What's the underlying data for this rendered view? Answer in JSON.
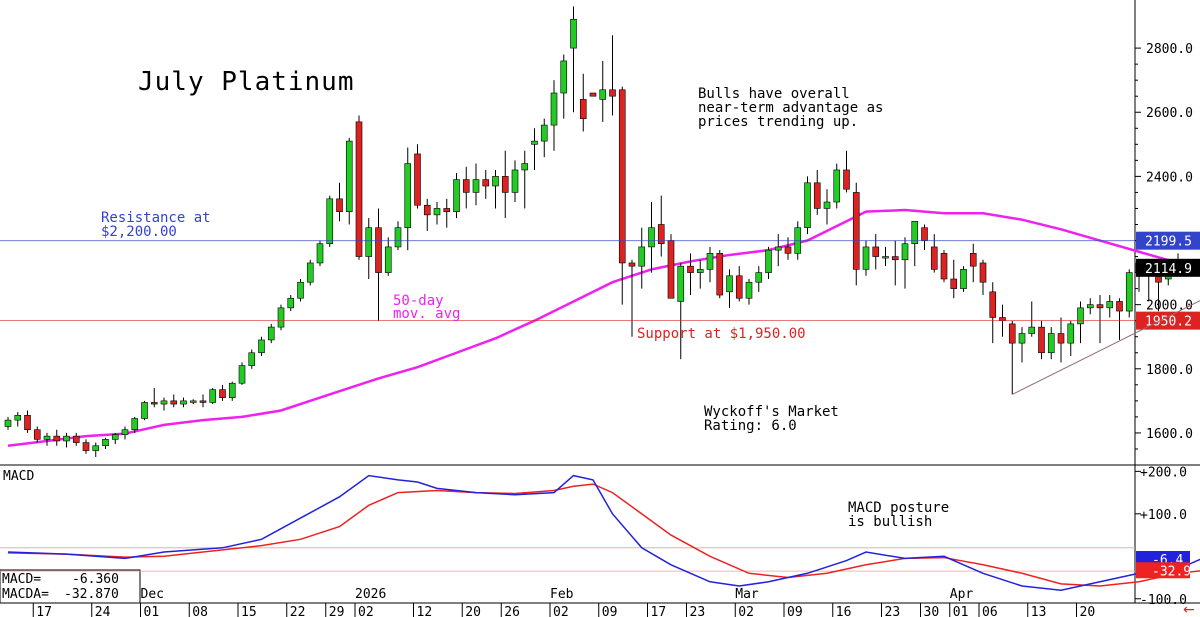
{
  "chart_data": {
    "type": "candlestick",
    "title": "July Platinum",
    "price_panel": {
      "ylim": [
        1500,
        2950
      ],
      "y_ticks": [
        1600,
        1800,
        2000,
        2200,
        2400,
        2600,
        2800
      ],
      "y_tick_labels": [
        "1600.0",
        "1800.0",
        "2000.0",
        "2200.0",
        "2400.0",
        "2600.0",
        "2800.0"
      ],
      "ohlc": [
        [
          1620,
          1650,
          1610,
          1640
        ],
        [
          1640,
          1665,
          1620,
          1655
        ],
        [
          1655,
          1670,
          1600,
          1610
        ],
        [
          1610,
          1620,
          1570,
          1580
        ],
        [
          1580,
          1600,
          1560,
          1590
        ],
        [
          1590,
          1610,
          1560,
          1575
        ],
        [
          1575,
          1600,
          1555,
          1590
        ],
        [
          1590,
          1600,
          1560,
          1570
        ],
        [
          1570,
          1580,
          1535,
          1545
        ],
        [
          1545,
          1570,
          1525,
          1560
        ],
        [
          1560,
          1585,
          1550,
          1580
        ],
        [
          1580,
          1600,
          1565,
          1595
        ],
        [
          1595,
          1620,
          1580,
          1610
        ],
        [
          1610,
          1650,
          1600,
          1645
        ],
        [
          1645,
          1700,
          1640,
          1695
        ],
        [
          1695,
          1740,
          1680,
          1690
        ],
        [
          1690,
          1710,
          1670,
          1700
        ],
        [
          1700,
          1720,
          1680,
          1690
        ],
        [
          1690,
          1710,
          1680,
          1700
        ],
        [
          1700,
          1705,
          1690,
          1700
        ],
        [
          1700,
          1720,
          1680,
          1695
        ],
        [
          1695,
          1740,
          1690,
          1735
        ],
        [
          1735,
          1750,
          1700,
          1710
        ],
        [
          1710,
          1760,
          1700,
          1755
        ],
        [
          1755,
          1820,
          1750,
          1810
        ],
        [
          1810,
          1860,
          1800,
          1850
        ],
        [
          1850,
          1900,
          1840,
          1890
        ],
        [
          1890,
          1940,
          1880,
          1930
        ],
        [
          1930,
          2000,
          1920,
          1990
        ],
        [
          1990,
          2030,
          1980,
          2020
        ],
        [
          2020,
          2080,
          2010,
          2070
        ],
        [
          2070,
          2140,
          2060,
          2130
        ],
        [
          2130,
          2200,
          2120,
          2190
        ],
        [
          2190,
          2340,
          2180,
          2330
        ],
        [
          2330,
          2380,
          2260,
          2290
        ],
        [
          2290,
          2520,
          2250,
          2510
        ],
        [
          2570,
          2590,
          2140,
          2150
        ],
        [
          2150,
          2270,
          2080,
          2240
        ],
        [
          2240,
          2300,
          1950,
          2100
        ],
        [
          2100,
          2210,
          2090,
          2180
        ],
        [
          2180,
          2260,
          2170,
          2240
        ],
        [
          2240,
          2490,
          2170,
          2440
        ],
        [
          2470,
          2500,
          2300,
          2310
        ],
        [
          2310,
          2330,
          2230,
          2280
        ],
        [
          2280,
          2320,
          2250,
          2300
        ],
        [
          2300,
          2330,
          2240,
          2290
        ],
        [
          2290,
          2410,
          2270,
          2390
        ],
        [
          2390,
          2430,
          2300,
          2350
        ],
        [
          2350,
          2440,
          2310,
          2390
        ],
        [
          2390,
          2420,
          2330,
          2370
        ],
        [
          2370,
          2420,
          2300,
          2400
        ],
        [
          2400,
          2480,
          2270,
          2350
        ],
        [
          2350,
          2450,
          2320,
          2420
        ],
        [
          2420,
          2480,
          2300,
          2440
        ],
        [
          2500,
          2550,
          2420,
          2510
        ],
        [
          2510,
          2580,
          2460,
          2560
        ],
        [
          2560,
          2700,
          2480,
          2660
        ],
        [
          2660,
          2780,
          2580,
          2760
        ],
        [
          2800,
          2930,
          2600,
          2890
        ],
        [
          2640,
          2720,
          2540,
          2580
        ],
        [
          2660,
          2660,
          2650,
          2650
        ],
        [
          2640,
          2760,
          2570,
          2670
        ],
        [
          2670,
          2840,
          2590,
          2650
        ],
        [
          2670,
          2680,
          2000,
          2130
        ],
        [
          2130,
          2140,
          1900,
          2120
        ],
        [
          2120,
          2240,
          2050,
          2180
        ],
        [
          2180,
          2320,
          2100,
          2240
        ],
        [
          2250,
          2340,
          2150,
          2190
        ],
        [
          2200,
          2220,
          2030,
          2020
        ],
        [
          2010,
          2130,
          1830,
          2120
        ],
        [
          2120,
          2160,
          2030,
          2100
        ],
        [
          2100,
          2140,
          2050,
          2110
        ],
        [
          2110,
          2180,
          2070,
          2160
        ],
        [
          2160,
          2170,
          2020,
          2030
        ],
        [
          2040,
          2110,
          1990,
          2090
        ],
        [
          2090,
          2120,
          2010,
          2020
        ],
        [
          2020,
          2080,
          2000,
          2070
        ],
        [
          2070,
          2120,
          2040,
          2100
        ],
        [
          2100,
          2180,
          2080,
          2170
        ],
        [
          2170,
          2220,
          2120,
          2180
        ],
        [
          2180,
          2210,
          2140,
          2160
        ],
        [
          2160,
          2260,
          2140,
          2240
        ],
        [
          2240,
          2400,
          2220,
          2380
        ],
        [
          2380,
          2420,
          2280,
          2300
        ],
        [
          2300,
          2360,
          2250,
          2320
        ],
        [
          2320,
          2440,
          2300,
          2420
        ],
        [
          2420,
          2480,
          2350,
          2360
        ],
        [
          2350,
          2380,
          2060,
          2110
        ],
        [
          2110,
          2200,
          2090,
          2180
        ],
        [
          2180,
          2220,
          2110,
          2150
        ],
        [
          2150,
          2180,
          2120,
          2150
        ],
        [
          2150,
          2200,
          2060,
          2140
        ],
        [
          2140,
          2210,
          2050,
          2190
        ],
        [
          2190,
          2260,
          2120,
          2260
        ],
        [
          2240,
          2250,
          2170,
          2200
        ],
        [
          2180,
          2220,
          2100,
          2110
        ],
        [
          2160,
          2170,
          2070,
          2080
        ],
        [
          2080,
          2140,
          2020,
          2050
        ],
        [
          2050,
          2120,
          2040,
          2110
        ],
        [
          2160,
          2190,
          2070,
          2120
        ],
        [
          2130,
          2140,
          2030,
          2070
        ],
        [
          2040,
          2070,
          1880,
          1960
        ],
        [
          1960,
          2000,
          1900,
          1950
        ],
        [
          1940,
          1950,
          1720,
          1880
        ],
        [
          1880,
          1930,
          1820,
          1910
        ],
        [
          1910,
          2010,
          1900,
          1930
        ],
        [
          1930,
          1950,
          1830,
          1850
        ],
        [
          1850,
          1930,
          1830,
          1910
        ],
        [
          1910,
          1960,
          1820,
          1880
        ],
        [
          1880,
          1950,
          1840,
          1940
        ],
        [
          1940,
          2010,
          1880,
          1990
        ],
        [
          1990,
          2020,
          1970,
          2000
        ],
        [
          2000,
          2030,
          1880,
          1990
        ],
        [
          1990,
          2030,
          1960,
          2010
        ],
        [
          2010,
          2020,
          1890,
          1980
        ],
        [
          1980,
          2110,
          1960,
          2100
        ],
        [
          2100,
          2140,
          2040,
          2130
        ],
        [
          2130,
          2140,
          2010,
          2090
        ],
        [
          2090,
          2120,
          1980,
          2070
        ],
        [
          2080,
          2130,
          2060,
          2110
        ],
        [
          2120,
          2160,
          2090,
          2115
        ]
      ],
      "moving_average_50": [
        [
          0,
          1560
        ],
        [
          4,
          1575
        ],
        [
          8,
          1590
        ],
        [
          12,
          1598
        ],
        [
          16,
          1625
        ],
        [
          20,
          1640
        ],
        [
          24,
          1650
        ],
        [
          28,
          1670
        ],
        [
          31,
          1700
        ],
        [
          34,
          1730
        ],
        [
          38,
          1770
        ],
        [
          42,
          1805
        ],
        [
          46,
          1850
        ],
        [
          50,
          1895
        ],
        [
          54,
          1950
        ],
        [
          58,
          2010
        ],
        [
          62,
          2070
        ],
        [
          66,
          2110
        ],
        [
          70,
          2135
        ],
        [
          74,
          2155
        ],
        [
          78,
          2170
        ],
        [
          82,
          2200
        ],
        [
          86,
          2260
        ],
        [
          88,
          2290
        ],
        [
          92,
          2295
        ],
        [
          96,
          2285
        ],
        [
          100,
          2285
        ],
        [
          104,
          2265
        ],
        [
          108,
          2235
        ],
        [
          112,
          2200
        ],
        [
          116,
          2165
        ],
        [
          120,
          2130
        ],
        [
          122,
          2110
        ],
        [
          124,
          2110
        ]
      ],
      "horizontal_lines": [
        {
          "value": 2199.5,
          "label": "2199.5",
          "color": "#3344cc"
        },
        {
          "value": 1950.2,
          "label": "1950.2",
          "color": "#dd2222"
        },
        {
          "value": 2114.9,
          "label": "2114.9",
          "color": "#000000"
        }
      ],
      "trendline": [
        [
          103,
          1720
        ],
        [
          130,
          2130
        ]
      ]
    },
    "macd_panel": {
      "title": "MACD",
      "ylim": [
        -110,
        215
      ],
      "y_ticks": [
        200,
        100,
        -100
      ],
      "y_tick_labels": [
        "+200.0",
        "+100.0",
        "-100.0"
      ],
      "macd_label": "MACD=",
      "macd_value": "-6.360",
      "macda_label": "MACDA=",
      "macda_value": "-32.870",
      "right_labels": [
        "-6.4",
        "-32.9"
      ],
      "macd": [
        [
          0,
          10
        ],
        [
          6,
          5
        ],
        [
          12,
          -5
        ],
        [
          16,
          10
        ],
        [
          22,
          20
        ],
        [
          26,
          40
        ],
        [
          30,
          90
        ],
        [
          34,
          140
        ],
        [
          37,
          190
        ],
        [
          40,
          180
        ],
        [
          42,
          175
        ],
        [
          44,
          160
        ],
        [
          48,
          150
        ],
        [
          52,
          145
        ],
        [
          56,
          150
        ],
        [
          58,
          190
        ],
        [
          60,
          180
        ],
        [
          62,
          100
        ],
        [
          65,
          20
        ],
        [
          68,
          -20
        ],
        [
          72,
          -60
        ],
        [
          75,
          -70
        ],
        [
          78,
          -60
        ],
        [
          82,
          -40
        ],
        [
          86,
          -10
        ],
        [
          88,
          10
        ],
        [
          92,
          -5
        ],
        [
          96,
          0
        ],
        [
          100,
          -40
        ],
        [
          104,
          -70
        ],
        [
          108,
          -80
        ],
        [
          112,
          -60
        ],
        [
          116,
          -40
        ],
        [
          120,
          -30
        ],
        [
          124,
          10
        ]
      ],
      "macda": [
        [
          0,
          8
        ],
        [
          6,
          5
        ],
        [
          12,
          -2
        ],
        [
          16,
          0
        ],
        [
          22,
          15
        ],
        [
          26,
          25
        ],
        [
          30,
          40
        ],
        [
          34,
          70
        ],
        [
          37,
          120
        ],
        [
          40,
          150
        ],
        [
          44,
          155
        ],
        [
          48,
          150
        ],
        [
          52,
          148
        ],
        [
          56,
          155
        ],
        [
          58,
          165
        ],
        [
          60,
          170
        ],
        [
          62,
          150
        ],
        [
          65,
          100
        ],
        [
          68,
          50
        ],
        [
          72,
          0
        ],
        [
          76,
          -40
        ],
        [
          80,
          -50
        ],
        [
          84,
          -40
        ],
        [
          88,
          -20
        ],
        [
          92,
          -5
        ],
        [
          96,
          -3
        ],
        [
          100,
          -20
        ],
        [
          104,
          -40
        ],
        [
          108,
          -65
        ],
        [
          112,
          -70
        ],
        [
          116,
          -60
        ],
        [
          120,
          -40
        ],
        [
          124,
          -30
        ]
      ],
      "zero_lines": [
        20,
        -35
      ]
    },
    "x_axis": {
      "tick_labels": [
        {
          "i": 3,
          "label": "17"
        },
        {
          "i": 9,
          "label": "24"
        },
        {
          "i": 14,
          "label": "01"
        },
        {
          "i": 19,
          "label": "08"
        },
        {
          "i": 24,
          "label": "15"
        },
        {
          "i": 29,
          "label": "22"
        },
        {
          "i": 33,
          "label": "29"
        },
        {
          "i": 36,
          "label": "02"
        },
        {
          "i": 42,
          "label": "12"
        },
        {
          "i": 47,
          "label": "20"
        },
        {
          "i": 51,
          "label": "26"
        },
        {
          "i": 56,
          "label": "02"
        },
        {
          "i": 61,
          "label": "09"
        },
        {
          "i": 66,
          "label": "17"
        },
        {
          "i": 70,
          "label": "23"
        },
        {
          "i": 75,
          "label": "02"
        },
        {
          "i": 80,
          "label": "09"
        },
        {
          "i": 85,
          "label": "16"
        },
        {
          "i": 90,
          "label": "23"
        },
        {
          "i": 94,
          "label": "30"
        },
        {
          "i": 97,
          "label": "01"
        },
        {
          "i": 100,
          "label": "06"
        },
        {
          "i": 105,
          "label": "13"
        },
        {
          "i": 110,
          "label": "20"
        }
      ],
      "month_labels": [
        {
          "i": 14,
          "label": "Dec"
        },
        {
          "i": 36,
          "label": "2026"
        },
        {
          "i": 56,
          "label": "Feb"
        },
        {
          "i": 75,
          "label": "Mar"
        },
        {
          "i": 97,
          "label": "Apr"
        }
      ]
    },
    "annotations": [
      {
        "id": "bulls",
        "lines": [
          "Bulls have overall",
          "near-term advantage as",
          "prices trending up."
        ],
        "color": "#000000"
      },
      {
        "id": "resistance",
        "lines": [
          "Resistance at",
          "$2,200.00"
        ],
        "color": "#3344cc"
      },
      {
        "id": "support",
        "lines": [
          "Support at $1,950.00"
        ],
        "color": "#dd2222"
      },
      {
        "id": "ma",
        "lines": [
          "50-day",
          "mov. avg"
        ],
        "color": "#ee22ee"
      },
      {
        "id": "wyckoff",
        "lines": [
          "Wyckoff's Market",
          "Rating: 6.0"
        ],
        "color": "#000000"
      },
      {
        "id": "macd-note",
        "lines": [
          "MACD posture",
          "is bullish"
        ],
        "color": "#000000"
      }
    ],
    "colors": {
      "up": "#22cc22",
      "down": "#dd2222",
      "ma": "#ee22ee",
      "macd": "#2222dd",
      "macda": "#ee2222",
      "resistance": "#3344cc",
      "support": "#dd2222",
      "trendline": "#996677"
    }
  }
}
